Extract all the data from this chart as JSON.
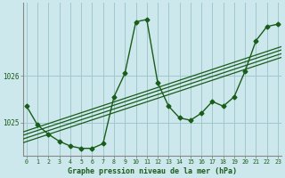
{
  "xlabel": "Graphe pression niveau de la mer (hPa)",
  "bg_color": "#cce8ec",
  "grid_color": "#a0c8cc",
  "line_color": "#1a5c1a",
  "hours": [
    0,
    1,
    2,
    3,
    4,
    5,
    6,
    7,
    8,
    9,
    10,
    11,
    12,
    13,
    14,
    15,
    16,
    17,
    18,
    19,
    20,
    21,
    22,
    23
  ],
  "pressure": [
    1025.35,
    1024.95,
    1024.75,
    1024.6,
    1024.5,
    1024.45,
    1024.45,
    1024.55,
    1025.55,
    1026.05,
    1027.15,
    1027.2,
    1025.85,
    1025.35,
    1025.1,
    1025.05,
    1025.2,
    1025.45,
    1025.35,
    1025.55,
    1026.1,
    1026.75,
    1027.05,
    1027.1
  ],
  "ylim": [
    1024.3,
    1027.55
  ],
  "yticks": [
    1025.0,
    1026.0
  ],
  "xlim": [
    -0.3,
    23.3
  ],
  "reg_offsets": [
    -0.08,
    0.0,
    0.08,
    0.15
  ]
}
